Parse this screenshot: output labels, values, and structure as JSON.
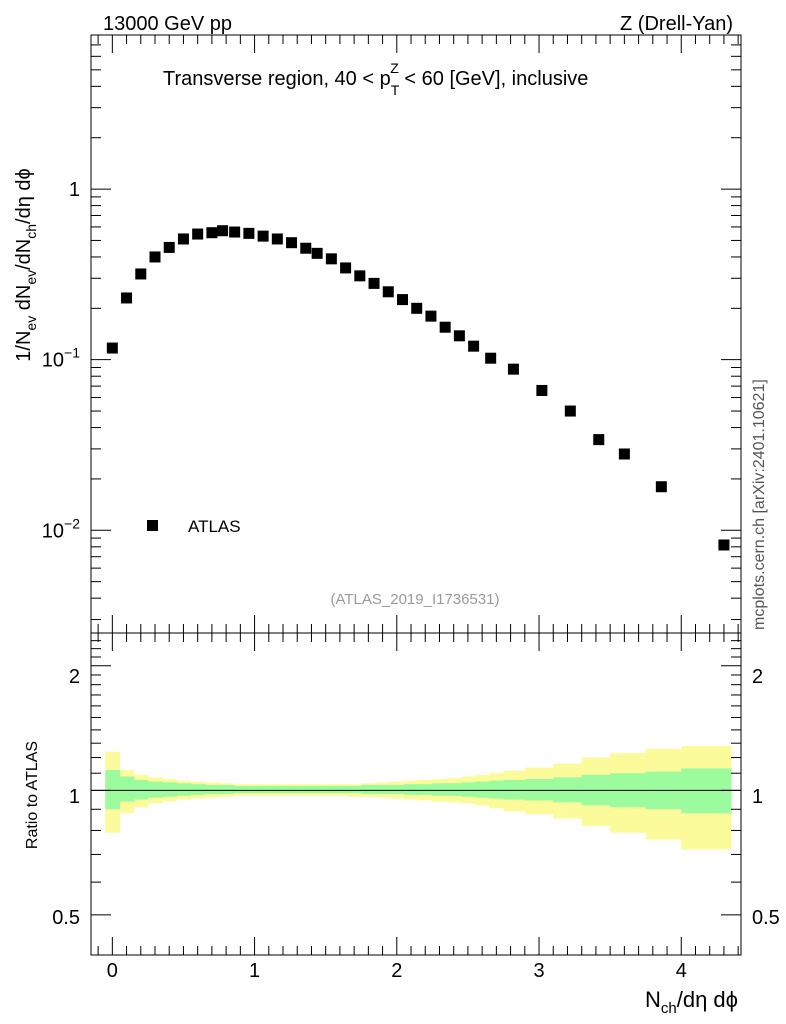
{
  "header": {
    "left_label": "13000 GeV pp",
    "right_label": "Z (Drell-Yan)"
  },
  "side_label": "mcplots.cern.ch [arXiv:2401.10621]",
  "chart_data": [
    {
      "type": "scatter",
      "panel": "main",
      "title_parts": {
        "prefix": "Transverse region, 40 < p",
        "sub": "T",
        "sup": "Z",
        "suffix": " < 60 [GeV], inclusive"
      },
      "ylabel_parts": [
        "1/N",
        "ev",
        " dN",
        "ev",
        "/dN",
        "ch",
        "/dη dϕ"
      ],
      "yscale": "log",
      "ylim": [
        0.0025,
        8.0
      ],
      "xlim": [
        -0.15,
        4.42
      ],
      "y_tick_labels": {
        "one": "1",
        "tenth_base": "10",
        "tenth_exp": "−1",
        "hundredth_base": "10",
        "hundredth_exp": "−2"
      },
      "legend": {
        "label": "ATLAS",
        "placement": "bottom-left"
      },
      "watermark": "(ATLAS_2019_I1736531)",
      "series": [
        {
          "name": "ATLAS",
          "marker": "square",
          "x": [
            0.0,
            0.1,
            0.2,
            0.3,
            0.4,
            0.5,
            0.6,
            0.7,
            0.775,
            0.86,
            0.96,
            1.06,
            1.16,
            1.26,
            1.36,
            1.44,
            1.54,
            1.64,
            1.74,
            1.84,
            1.94,
            2.04,
            2.14,
            2.24,
            2.34,
            2.44,
            2.54,
            2.66,
            2.82,
            3.02,
            3.22,
            3.42,
            3.6,
            3.86,
            4.3
          ],
          "y": [
            0.117,
            0.23,
            0.318,
            0.4,
            0.455,
            0.51,
            0.545,
            0.555,
            0.57,
            0.56,
            0.55,
            0.53,
            0.51,
            0.485,
            0.45,
            0.42,
            0.39,
            0.345,
            0.31,
            0.28,
            0.25,
            0.225,
            0.2,
            0.18,
            0.155,
            0.138,
            0.12,
            0.102,
            0.088,
            0.066,
            0.05,
            0.034,
            0.028,
            0.018,
            0.0082
          ]
        }
      ]
    },
    {
      "type": "area",
      "panel": "ratio",
      "ylabel": "Ratio to ATLAS",
      "yscale": "log",
      "ylim": [
        0.4,
        2.4
      ],
      "xlim": [
        -0.15,
        4.42
      ],
      "y_tick_labels": [
        "0.5",
        "1",
        "2"
      ],
      "x_tick_labels": [
        "0",
        "1",
        "2",
        "3",
        "4"
      ],
      "xlabel_parts": {
        "base": "N",
        "sub": "ch",
        "rest": "/dη dϕ"
      },
      "reference_line": 1.0,
      "bin_edges": [
        -0.05,
        0.05,
        0.15,
        0.25,
        0.35,
        0.45,
        0.55,
        0.65,
        0.75,
        0.85,
        0.95,
        1.05,
        1.15,
        1.25,
        1.35,
        1.45,
        1.55,
        1.65,
        1.75,
        1.85,
        1.95,
        2.05,
        2.15,
        2.25,
        2.35,
        2.45,
        2.55,
        2.65,
        2.75,
        2.9,
        3.1,
        3.3,
        3.5,
        3.75,
        4.0,
        4.35
      ],
      "bands": [
        {
          "name": "stat",
          "color": "#9cfb9c",
          "lower": [
            0.9,
            0.94,
            0.95,
            0.96,
            0.965,
            0.97,
            0.975,
            0.98,
            0.98,
            0.985,
            0.985,
            0.985,
            0.985,
            0.985,
            0.985,
            0.985,
            0.985,
            0.985,
            0.98,
            0.98,
            0.98,
            0.975,
            0.975,
            0.97,
            0.97,
            0.965,
            0.96,
            0.955,
            0.95,
            0.945,
            0.935,
            0.92,
            0.91,
            0.9,
            0.88
          ],
          "upper": [
            1.12,
            1.08,
            1.06,
            1.05,
            1.045,
            1.04,
            1.035,
            1.03,
            1.03,
            1.025,
            1.025,
            1.025,
            1.025,
            1.025,
            1.025,
            1.025,
            1.025,
            1.025,
            1.03,
            1.03,
            1.03,
            1.035,
            1.035,
            1.04,
            1.04,
            1.045,
            1.05,
            1.055,
            1.06,
            1.065,
            1.075,
            1.09,
            1.1,
            1.11,
            1.13
          ]
        },
        {
          "name": "total",
          "color": "#fbfb9c",
          "lower": [
            0.79,
            0.88,
            0.91,
            0.93,
            0.94,
            0.95,
            0.955,
            0.96,
            0.965,
            0.97,
            0.97,
            0.97,
            0.97,
            0.97,
            0.97,
            0.97,
            0.97,
            0.965,
            0.965,
            0.96,
            0.955,
            0.95,
            0.945,
            0.94,
            0.935,
            0.93,
            0.92,
            0.905,
            0.89,
            0.875,
            0.855,
            0.82,
            0.79,
            0.76,
            0.72
          ],
          "upper": [
            1.24,
            1.12,
            1.09,
            1.075,
            1.065,
            1.055,
            1.05,
            1.045,
            1.04,
            1.035,
            1.035,
            1.035,
            1.035,
            1.035,
            1.035,
            1.035,
            1.035,
            1.035,
            1.04,
            1.045,
            1.05,
            1.055,
            1.06,
            1.065,
            1.07,
            1.08,
            1.09,
            1.1,
            1.115,
            1.135,
            1.16,
            1.2,
            1.23,
            1.26,
            1.28
          ]
        }
      ]
    }
  ]
}
